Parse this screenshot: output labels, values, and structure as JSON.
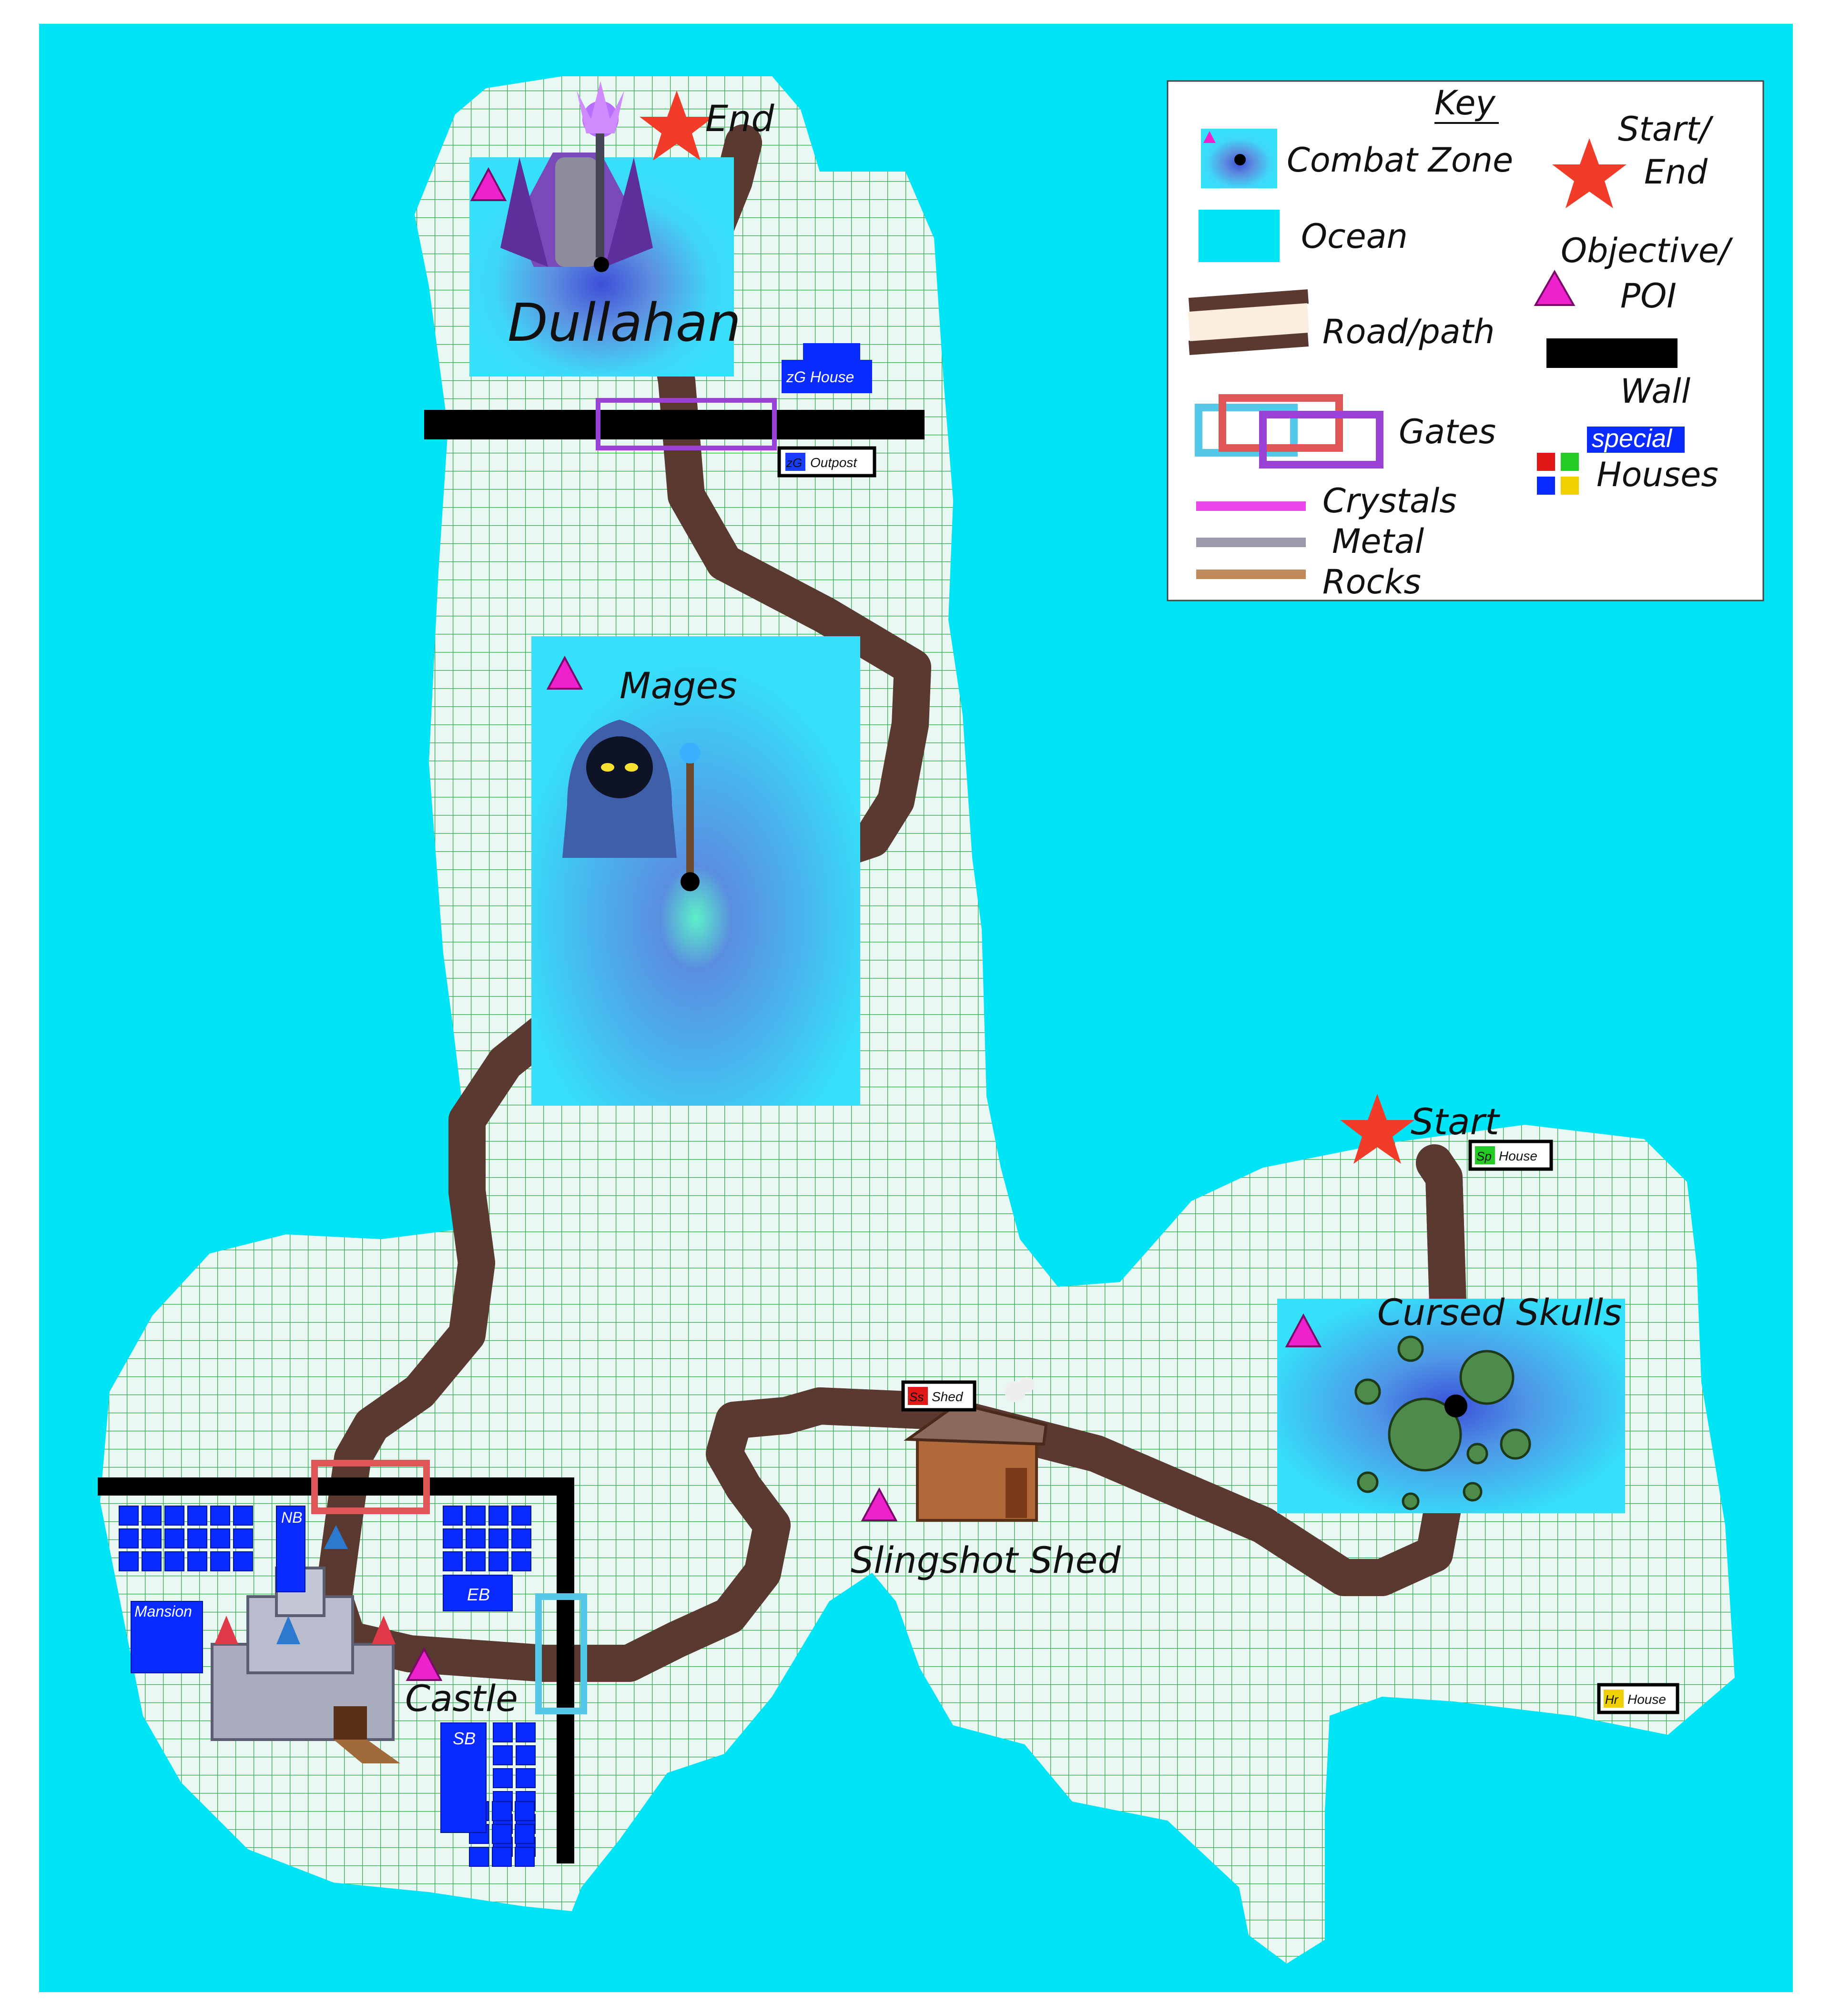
{
  "labels": {
    "end": "End",
    "start": "Start",
    "dullahan": "Dullahan",
    "mages": "Mages",
    "cursed_skulls": "Cursed Skulls",
    "slingshot_shed": "Slingshot Shed",
    "castle": "Castle",
    "mansion": "Mansion",
    "nb": "NB",
    "eb": "EB",
    "sb": "SB"
  },
  "houses": {
    "zg_house": {
      "tag": "zG",
      "text": "House",
      "color": "#1a3cff"
    },
    "zg_outpost": {
      "tag": "zG",
      "text": "Outpost",
      "color": "#1a3cff"
    },
    "ss_shed": {
      "tag": "Ss",
      "text": "Shed",
      "color": "#e01818"
    },
    "sp_house": {
      "tag": "Sp",
      "text": "House",
      "color": "#22cc22"
    },
    "hr_house": {
      "tag": "Hr",
      "text": "House",
      "color": "#f0d000"
    }
  },
  "legend": {
    "title": "Key",
    "combat_zone": "Combat Zone",
    "start_end_1": "Start/",
    "start_end_2": "End",
    "ocean": "Ocean",
    "objective_1": "Objective/",
    "objective_2": "POI",
    "road": "Road/path",
    "wall": "Wall",
    "gates": "Gates",
    "special": "special",
    "houses": "Houses",
    "crystals": "Crystals",
    "metal": "Metal",
    "rocks": "Rocks"
  },
  "colors": {
    "ocean": "#00e5f5",
    "land": "#e9f8f2",
    "grid": "#2ea84a",
    "road_fill": "#fbeee0",
    "road_edge": "#5a3a30",
    "wall": "#000000",
    "house_blue": "#0a2bff",
    "gate_red": "#e05656",
    "gate_purple": "#9b42d6",
    "gate_blue": "#54c8e8",
    "poi": "#ee22cc",
    "star": "#f03c28",
    "crystals": "#ee44ee",
    "metal": "#9a9aaa",
    "rocks": "#c08a5a"
  }
}
